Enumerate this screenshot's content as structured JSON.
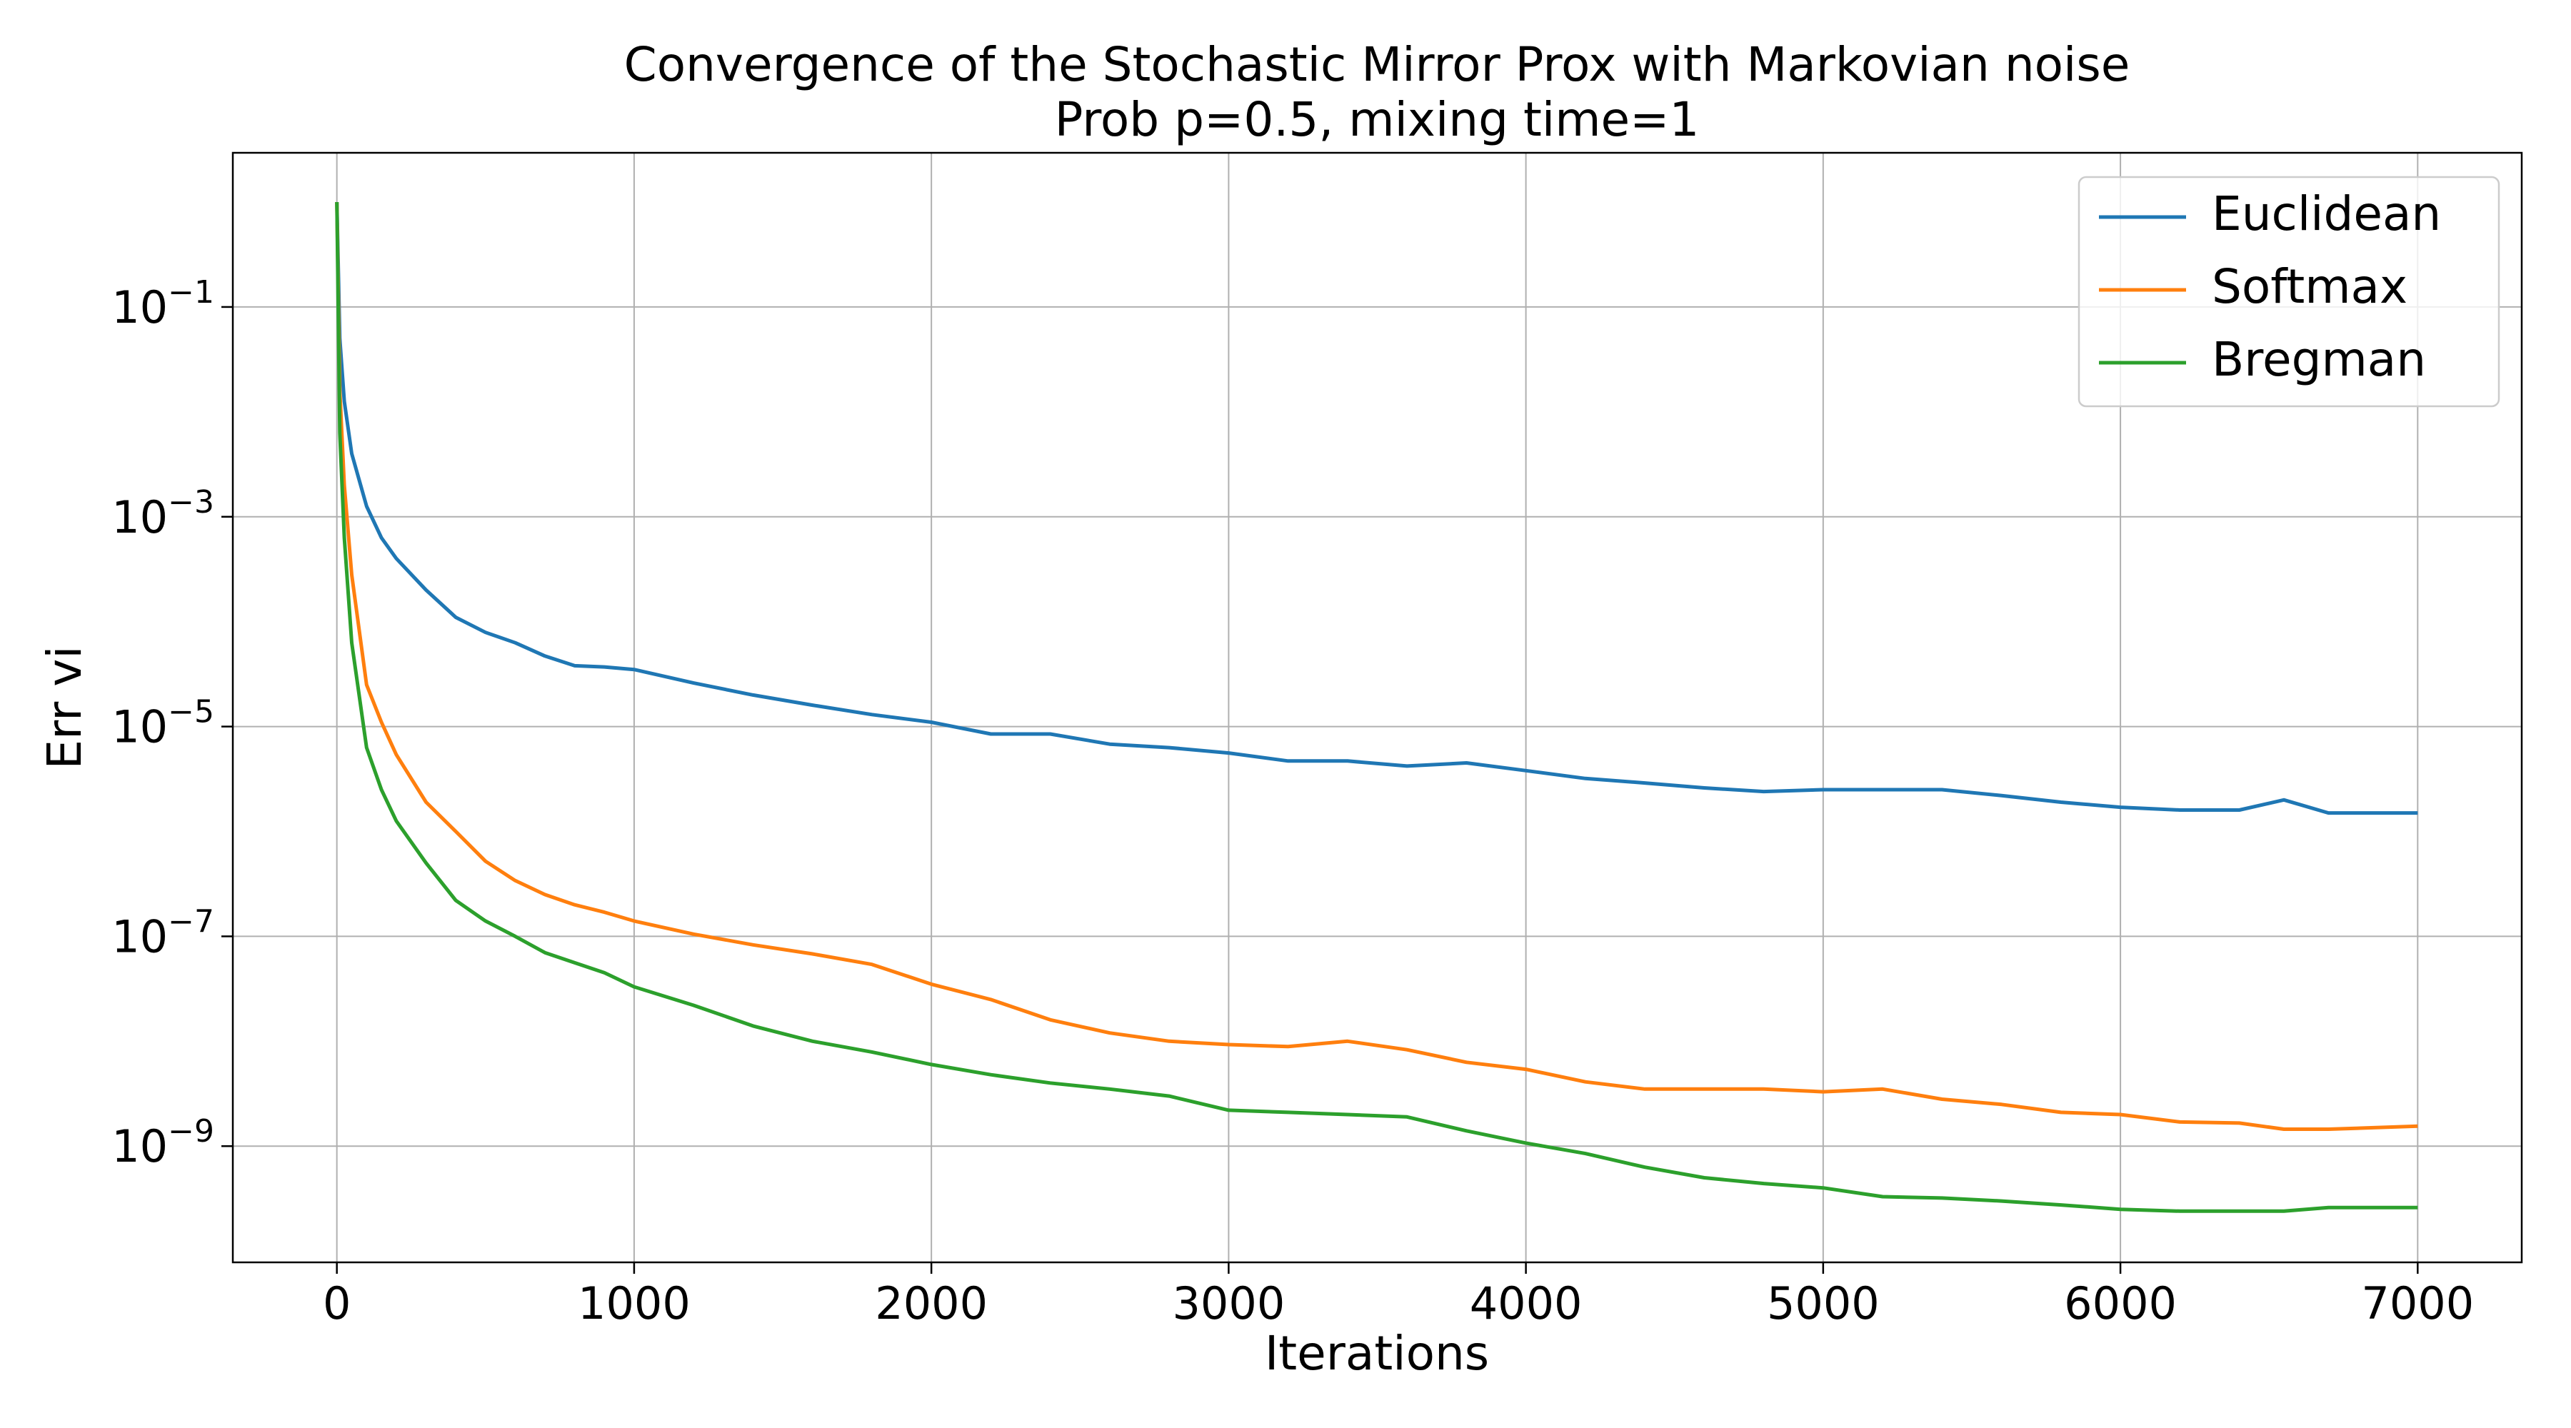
{
  "chart_data": {
    "type": "line",
    "title": "Convergence of the Stochastic Mirror Prox with Markovian noise",
    "subtitle": "Prob p=0.5, mixing time=1",
    "x_label": "Iterations",
    "y_label": "Err vi",
    "x": [
      0,
      10,
      25,
      50,
      100,
      150,
      200,
      300,
      400,
      500,
      600,
      700,
      800,
      900,
      1000,
      1200,
      1400,
      1600,
      1800,
      2000,
      2200,
      2400,
      2600,
      2800,
      3000,
      3200,
      3400,
      3600,
      3800,
      4000,
      4200,
      4400,
      4600,
      4800,
      5000,
      5200,
      5400,
      5600,
      5800,
      6000,
      6200,
      6400,
      6550,
      6700,
      7000
    ],
    "series": [
      {
        "name": "Euclidean",
        "color": "#1f77b4",
        "values": [
          1,
          0.05,
          0.0126,
          0.004,
          0.00126,
          0.00063,
          0.0004,
          0.0002,
          0.00011,
          7.9e-05,
          6.3e-05,
          4.7e-05,
          3.8e-05,
          3.7e-05,
          3.5e-05,
          2.6e-05,
          2e-05,
          1.6e-05,
          1.3e-05,
          1.1e-05,
          8.5e-06,
          8.5e-06,
          6.8e-06,
          6.3e-06,
          5.6e-06,
          4.7e-06,
          4.7e-06,
          4.2e-06,
          4.5e-06,
          3.8e-06,
          3.2e-06,
          2.9e-06,
          2.6e-06,
          2.4e-06,
          2.5e-06,
          2.5e-06,
          2.5e-06,
          2.2e-06,
          1.9e-06,
          1.7e-06,
          1.6e-06,
          1.6e-06,
          2e-06,
          1.5e-06,
          1.5e-06
        ]
      },
      {
        "name": "Softmax",
        "color": "#ff7f0e",
        "values": [
          1,
          0.016,
          0.002,
          0.00028,
          2.5e-05,
          1.1e-05,
          5.4e-06,
          1.9e-06,
          1e-06,
          5.2e-07,
          3.4e-07,
          2.5e-07,
          2e-07,
          1.7e-07,
          1.4e-07,
          1.05e-07,
          8.3e-08,
          6.8e-08,
          5.4e-08,
          3.5e-08,
          2.5e-08,
          1.6e-08,
          1.2e-08,
          1e-08,
          9.3e-09,
          8.9e-09,
          1e-08,
          8.3e-09,
          6.3e-09,
          5.4e-09,
          4.1e-09,
          3.5e-09,
          3.5e-09,
          3.5e-09,
          3.3e-09,
          3.5e-09,
          2.8e-09,
          2.5e-09,
          2.1e-09,
          2e-09,
          1.7e-09,
          1.66e-09,
          1.45e-09,
          1.45e-09,
          1.55e-09
        ]
      },
      {
        "name": "Bregman",
        "color": "#2ca02c",
        "values": [
          1,
          0.0063,
          0.00063,
          6.3e-05,
          6.3e-06,
          2.5e-06,
          1.26e-06,
          5e-07,
          2.2e-07,
          1.4e-07,
          1e-07,
          7e-08,
          5.6e-08,
          4.5e-08,
          3.3e-08,
          2.2e-08,
          1.4e-08,
          1e-08,
          7.9e-09,
          6e-09,
          4.8e-09,
          4e-09,
          3.5e-09,
          3e-09,
          2.2e-09,
          2.1e-09,
          2e-09,
          1.9e-09,
          1.4e-09,
          1.07e-09,
          8.5e-10,
          6.3e-10,
          5e-10,
          4.4e-10,
          4e-10,
          3.3e-10,
          3.2e-10,
          3e-10,
          2.75e-10,
          2.5e-10,
          2.4e-10,
          2.4e-10,
          2.4e-10,
          2.6e-10,
          2.6e-10
        ]
      }
    ],
    "xlim": [
      -350,
      7350
    ],
    "xticks": [
      0,
      1000,
      2000,
      3000,
      4000,
      5000,
      6000,
      7000
    ],
    "ylim": [
      7.8e-11,
      2.95
    ],
    "yticks": [
      {
        "value": 0.1,
        "label": "10−1"
      },
      {
        "value": 0.001,
        "label": "10−3"
      },
      {
        "value": 1e-05,
        "label": "10−5"
      },
      {
        "value": 1e-07,
        "label": "10−7"
      },
      {
        "value": 1e-09,
        "label": "10−9"
      }
    ],
    "log_y": true,
    "grid": true,
    "legend": "upper right"
  }
}
